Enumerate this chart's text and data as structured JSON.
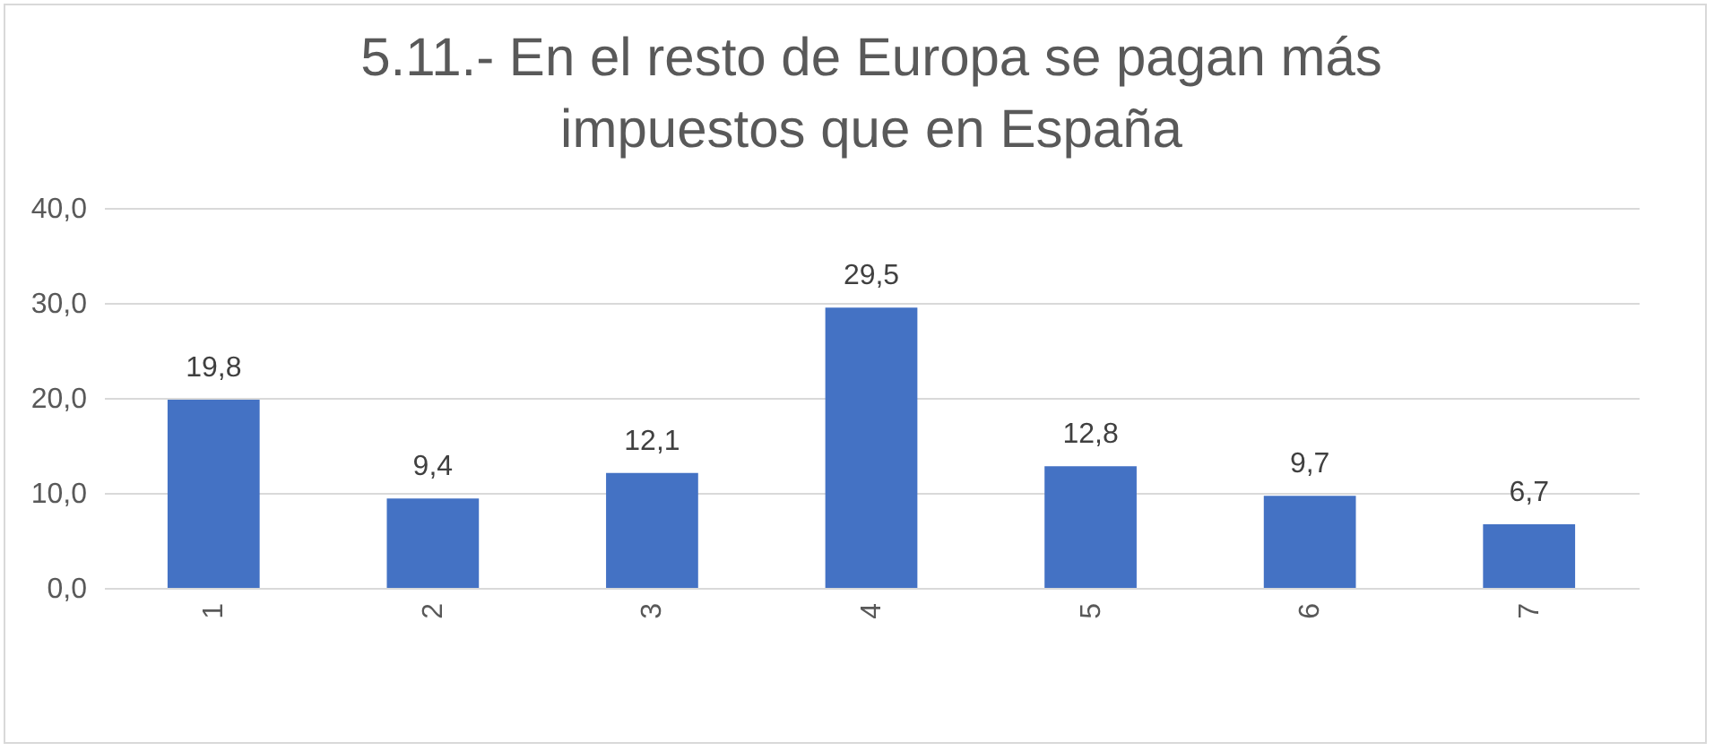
{
  "chart_data": {
    "type": "bar",
    "title": "5.11.- En el resto de Europa se pagan más\nimpuestos que en España",
    "categories": [
      "1",
      "2",
      "3",
      "4",
      "5",
      "6",
      "7"
    ],
    "values": [
      19.8,
      9.4,
      12.1,
      29.5,
      12.8,
      9.7,
      6.7
    ],
    "value_labels": [
      "19,8",
      "9,4",
      "12,1",
      "29,5",
      "12,8",
      "9,7",
      "6,7"
    ],
    "color": "#4472c4",
    "ylim": [
      0,
      40
    ],
    "yticks": [
      {
        "value": 0,
        "label": "0,0"
      },
      {
        "value": 10,
        "label": "10,0"
      },
      {
        "value": 20,
        "label": "20,0"
      },
      {
        "value": 30,
        "label": "30,0"
      },
      {
        "value": 40,
        "label": "40,0"
      }
    ],
    "grid": "y"
  }
}
